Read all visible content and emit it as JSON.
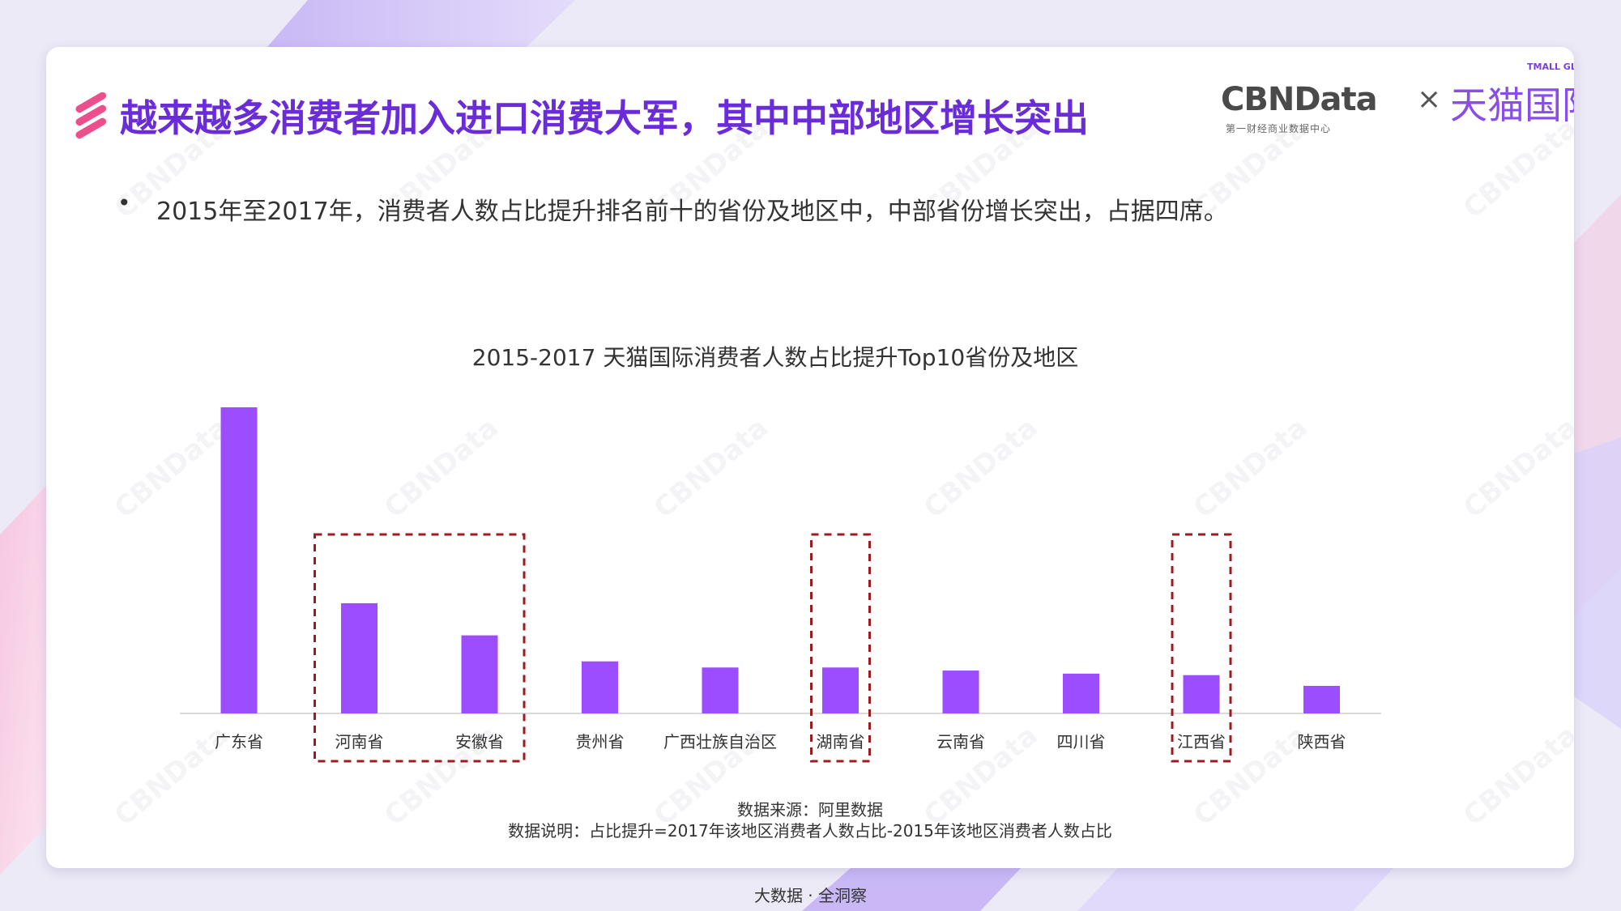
{
  "header": {
    "title": "越来越多消费者加入进口消费大军，其中中部地区增长突出",
    "title_icon": "triple-stripe-icon"
  },
  "logo": {
    "cbn_name": "CBNData",
    "cbn_subtitle": "第一财经商业数据中心",
    "separator": "×",
    "tmall_small": "TMALL GLOBAL",
    "tmall_name": "天猫国际"
  },
  "bullet": {
    "marker": "•",
    "text": "2015年至2017年，消费者人数占比提升排名前十的省份及地区中，中部省份增长突出，占据四席。"
  },
  "watermark_text": "CBNData",
  "chart_data": {
    "type": "bar",
    "title": "2015-2017 天猫国际消费者人数占比提升Top10省份及地区",
    "categories": [
      "广东省",
      "河南省",
      "安徽省",
      "贵州省",
      "广西壮族自治区",
      "湖南省",
      "云南省",
      "四川省",
      "江西省",
      "陕西省"
    ],
    "values": [
      100,
      36,
      25.5,
      17,
      15,
      15,
      14,
      13,
      12.5,
      9
    ],
    "highlight_groups": [
      [
        1,
        2
      ],
      [
        5
      ],
      [
        8
      ]
    ],
    "bar_color": "#9b4dff",
    "highlight_color": "#9b1c22",
    "ylim": [
      0,
      100
    ],
    "grid": false,
    "legend": "none",
    "xlabel": "",
    "ylabel": ""
  },
  "notes": {
    "source": "数据来源：阿里数据",
    "explanation": "数据说明：占比提升=2017年该地区消费者人数占比-2015年该地区消费者人数占比"
  },
  "footer": "大数据 · 全洞察"
}
